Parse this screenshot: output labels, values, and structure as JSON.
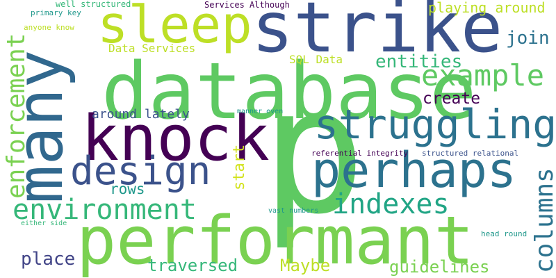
{
  "words": [
    {
      "text": "p",
      "color": "#5ec962"
    },
    {
      "text": "database",
      "color": "#5ec962"
    },
    {
      "text": "performant",
      "color": "#7ad151"
    },
    {
      "text": "strike",
      "color": "#3b528b"
    },
    {
      "text": "many",
      "color": "#31688e"
    },
    {
      "text": "knock",
      "color": "#440154"
    },
    {
      "text": "sleep",
      "color": "#bddf26"
    },
    {
      "text": "perhaps",
      "color": "#2c728e"
    },
    {
      "text": "struggling",
      "color": "#2c728e"
    },
    {
      "text": "design",
      "color": "#3b528b"
    },
    {
      "text": "enforcement",
      "color": "#7ad151"
    },
    {
      "text": "example",
      "color": "#5ec962"
    },
    {
      "text": "environment",
      "color": "#35b779"
    },
    {
      "text": "indexes",
      "color": "#21a585"
    },
    {
      "text": "columns",
      "color": "#2c728e"
    },
    {
      "text": "entities",
      "color": "#35b779"
    },
    {
      "text": "guidelines",
      "color": "#7ad151"
    },
    {
      "text": "traversed",
      "color": "#35b779"
    },
    {
      "text": "place",
      "color": "#414487"
    },
    {
      "text": "Maybe",
      "color": "#bddf26"
    },
    {
      "text": "join",
      "color": "#2c728e"
    },
    {
      "text": "start",
      "color": "#d2e21b"
    },
    {
      "text": "create",
      "color": "#440154"
    },
    {
      "text": "rows",
      "color": "#1f988b"
    },
    {
      "text": "playing around",
      "color": "#bddf26"
    },
    {
      "text": "Data Services",
      "color": "#bddf26"
    },
    {
      "text": "around lately",
      "color": "#3b528b"
    },
    {
      "text": "SQL Data",
      "color": "#bddf26"
    },
    {
      "text": "Services Although",
      "color": "#440154"
    },
    {
      "text": "well structured",
      "color": "#35b779"
    },
    {
      "text": "primary key",
      "color": "#1f988b"
    },
    {
      "text": "anyone know",
      "color": "#bddf26"
    },
    {
      "text": "manner even",
      "color": "#1f988b"
    },
    {
      "text": "referential integrity",
      "color": "#440154"
    },
    {
      "text": "structured relational",
      "color": "#3b528b"
    },
    {
      "text": "vast numbers",
      "color": "#1f988b"
    },
    {
      "text": "either side",
      "color": "#35b779"
    },
    {
      "text": "head round",
      "color": "#1f988b"
    }
  ]
}
